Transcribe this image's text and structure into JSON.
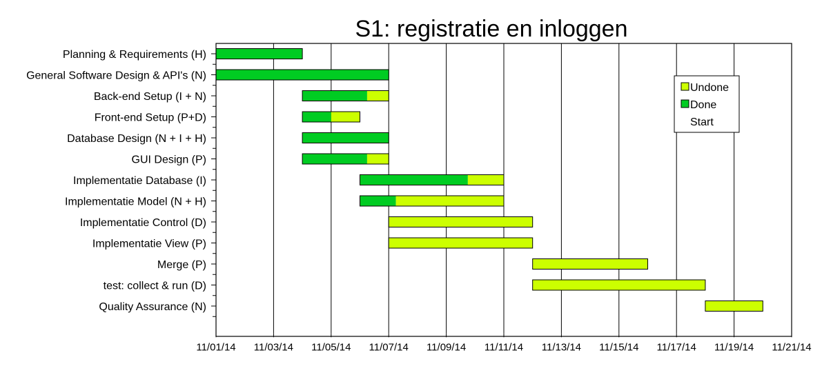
{
  "chart_data": {
    "type": "gantt",
    "title": "S1: registratie en inloggen",
    "x_ticks": [
      "11/01/14",
      "11/03/14",
      "11/05/14",
      "11/07/14",
      "11/09/14",
      "11/11/14",
      "11/13/14",
      "11/15/14",
      "11/17/14",
      "11/19/14",
      "11/21/14"
    ],
    "x_range": [
      "11/01/14",
      "11/21/14"
    ],
    "grid": "vertical",
    "legend_position": "top-right",
    "legend": [
      {
        "label": "Undone",
        "color": "#ccff00"
      },
      {
        "label": "Done",
        "color": "#00cc22"
      },
      {
        "label": "Start",
        "color": "#ffffff"
      }
    ],
    "tasks": [
      {
        "name": "Planning & Requirements (H)",
        "start": "11/01/14",
        "done_end": "11/04/14",
        "end": "11/04/14"
      },
      {
        "name": "General Software Design & API's (N)",
        "start": "11/01/14",
        "done_end": "11/07/14",
        "end": "11/07/14"
      },
      {
        "name": "Back-end Setup (I + N)",
        "start": "11/04/14",
        "done_end": "11/06/14 06:00",
        "end": "11/07/14"
      },
      {
        "name": "Front-end Setup (P+D)",
        "start": "11/04/14",
        "done_end": "11/05/14",
        "end": "11/06/14"
      },
      {
        "name": "Database Design (N + I + H)",
        "start": "11/04/14",
        "done_end": "11/07/14",
        "end": "11/07/14"
      },
      {
        "name": "GUI Design (P)",
        "start": "11/04/14",
        "done_end": "11/06/14 06:00",
        "end": "11/07/14"
      },
      {
        "name": "Implementatie Database (I)",
        "start": "11/06/14",
        "done_end": "11/09/14 18:00",
        "end": "11/11/14"
      },
      {
        "name": "Implementatie Model (N + H)",
        "start": "11/06/14",
        "done_end": "11/07/14 06:00",
        "end": "11/11/14"
      },
      {
        "name": "Implementatie Control (D)",
        "start": "11/07/14",
        "done_end": "11/07/14",
        "end": "11/12/14"
      },
      {
        "name": "Implementatie View (P)",
        "start": "11/07/14",
        "done_end": "11/07/14",
        "end": "11/12/14"
      },
      {
        "name": "Merge (P)",
        "start": "11/12/14",
        "done_end": "11/12/14",
        "end": "11/16/14"
      },
      {
        "name": "test: collect & run (D)",
        "start": "11/12/14",
        "done_end": "11/12/14",
        "end": "11/18/14"
      },
      {
        "name": "Quality Assurance (N)",
        "start": "11/18/14",
        "done_end": "11/18/14",
        "end": "11/20/14"
      }
    ]
  }
}
